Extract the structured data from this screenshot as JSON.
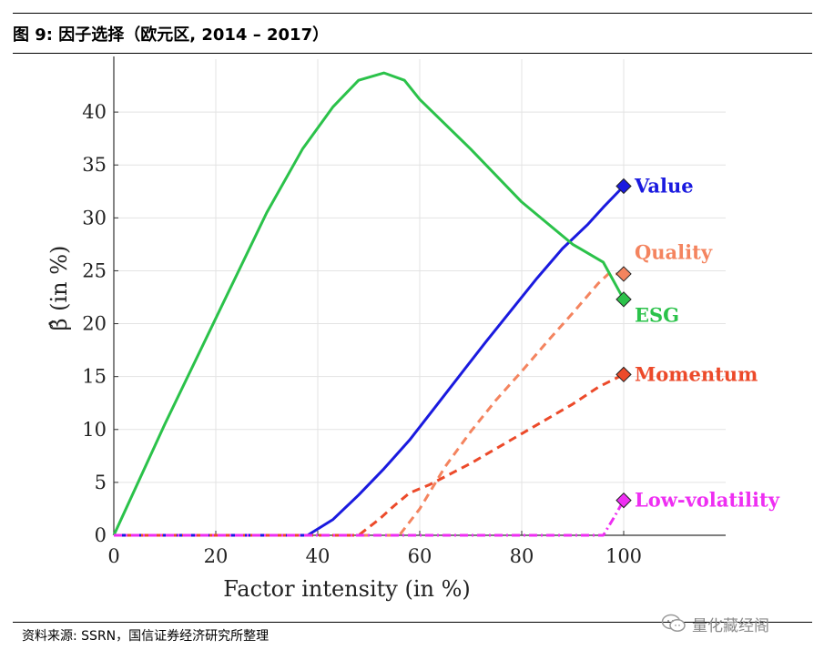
{
  "header": {
    "title": "图 9:  因子选择（欧元区, 2014 – 2017）"
  },
  "footer": {
    "source": "资料来源: SSRN，国信证券经济研究所整理",
    "watermark": "量化藏经阁",
    "watermark_icon": "wechat-icon"
  },
  "chart_data": {
    "type": "line",
    "title": "",
    "xlabel": "Factor intensity (in %)",
    "ylabel": "β̂ (in %)",
    "xlim": [
      0,
      120
    ],
    "ylim": [
      0,
      45
    ],
    "xticks": [
      0,
      20,
      40,
      60,
      80,
      100
    ],
    "yticks": [
      0,
      5,
      10,
      15,
      20,
      25,
      30,
      35,
      40
    ],
    "grid": true,
    "series": [
      {
        "name": "Value",
        "color": "#1a1adf",
        "dash": "solid",
        "x": [
          0,
          38,
          43,
          48,
          53,
          58,
          63,
          68,
          73,
          78,
          83,
          88,
          93,
          96,
          100
        ],
        "y": [
          0,
          0,
          1.5,
          3.8,
          6.3,
          9,
          12.1,
          15.2,
          18.3,
          21.3,
          24.3,
          27.1,
          29.4,
          31,
          33
        ],
        "end_value": 33
      },
      {
        "name": "Quality",
        "color": "#f4845f",
        "dash": "dashed",
        "x": [
          0,
          52,
          56,
          60,
          65,
          70,
          75,
          80,
          85,
          90,
          95,
          97,
          100
        ],
        "y": [
          0,
          0,
          0,
          2.5,
          6.5,
          9.8,
          12.8,
          15.5,
          18.3,
          21,
          23.8,
          24.7,
          24.7
        ],
        "end_value": 24.7
      },
      {
        "name": "ESG",
        "color": "#2bc24a",
        "dash": "solid",
        "x": [
          0,
          10,
          20,
          30,
          37,
          43,
          48,
          53,
          57,
          60,
          70,
          80,
          90,
          96,
          100
        ],
        "y": [
          0,
          10.5,
          20.5,
          30.5,
          36.5,
          40.5,
          43,
          43.7,
          43,
          41.2,
          36.5,
          31.5,
          27.5,
          25.8,
          22.3
        ],
        "end_value": 22.3
      },
      {
        "name": "Momentum",
        "color": "#ec4a2a",
        "dash": "dashed",
        "x": [
          0,
          48,
          52,
          55,
          58,
          62,
          70,
          80,
          90,
          95,
          100
        ],
        "y": [
          0,
          0,
          1.5,
          2.8,
          4,
          4.8,
          6.8,
          9.6,
          12.4,
          14,
          15.2
        ],
        "end_value": 15.2
      },
      {
        "name": "Low-volatility",
        "color": "#ee2ef2",
        "dash": "dashdot",
        "x": [
          0,
          96,
          98,
          100
        ],
        "y": [
          0,
          0,
          1.6,
          3.3
        ],
        "end_value": 3.3
      }
    ],
    "labels": [
      {
        "text": "Value",
        "color": "#1a1adf",
        "anchor_y": 33
      },
      {
        "text": "Quality",
        "color": "#f4845f",
        "anchor_y": 26.7
      },
      {
        "text": "ESG",
        "color": "#2bc24a",
        "anchor_y": 20.8
      },
      {
        "text": "Momentum",
        "color": "#ec4a2a",
        "anchor_y": 15.2
      },
      {
        "text": "Low-volatility",
        "color": "#ee2ef2",
        "anchor_y": 3.3
      }
    ]
  }
}
